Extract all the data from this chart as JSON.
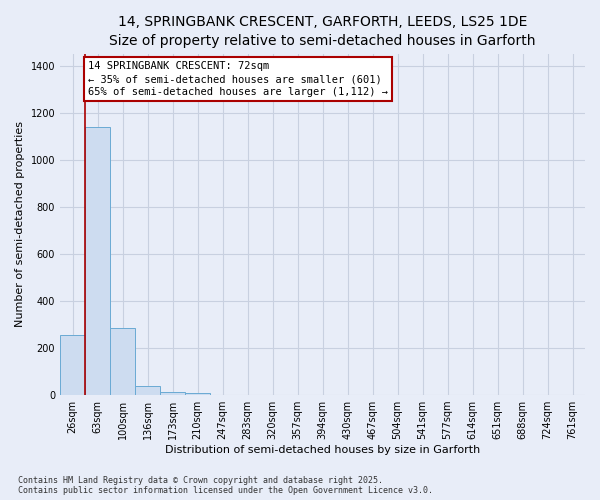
{
  "title": "14, SPRINGBANK CRESCENT, GARFORTH, LEEDS, LS25 1DE",
  "subtitle": "Size of property relative to semi-detached houses in Garforth",
  "xlabel": "Distribution of semi-detached houses by size in Garforth",
  "ylabel": "Number of semi-detached properties",
  "bar_color": "#cddcf0",
  "bar_edge_color": "#6aaad4",
  "categories": [
    "26sqm",
    "63sqm",
    "100sqm",
    "136sqm",
    "173sqm",
    "210sqm",
    "247sqm",
    "283sqm",
    "320sqm",
    "357sqm",
    "394sqm",
    "430sqm",
    "467sqm",
    "504sqm",
    "541sqm",
    "577sqm",
    "614sqm",
    "651sqm",
    "688sqm",
    "724sqm",
    "761sqm"
  ],
  "values": [
    255,
    1140,
    285,
    38,
    15,
    8,
    0,
    0,
    0,
    0,
    0,
    0,
    0,
    0,
    0,
    0,
    0,
    0,
    0,
    0,
    0
  ],
  "ylim": [
    0,
    1450
  ],
  "yticks": [
    0,
    200,
    400,
    600,
    800,
    1000,
    1200,
    1400
  ],
  "red_line_x": 0.5,
  "annotation_text": "14 SPRINGBANK CRESCENT: 72sqm\n← 35% of semi-detached houses are smaller (601)\n65% of semi-detached houses are larger (1,112) →",
  "annotation_box_color": "#ffffff",
  "annotation_edge_color": "#aa0000",
  "red_line_color": "#aa0000",
  "bg_color": "#e8edf8",
  "plot_bg_color": "#e8edf8",
  "grid_color": "#c8d0e0",
  "footer_text": "Contains HM Land Registry data © Crown copyright and database right 2025.\nContains public sector information licensed under the Open Government Licence v3.0.",
  "title_fontsize": 10,
  "tick_fontsize": 7,
  "ylabel_fontsize": 8,
  "xlabel_fontsize": 8,
  "annot_fontsize": 7.5
}
